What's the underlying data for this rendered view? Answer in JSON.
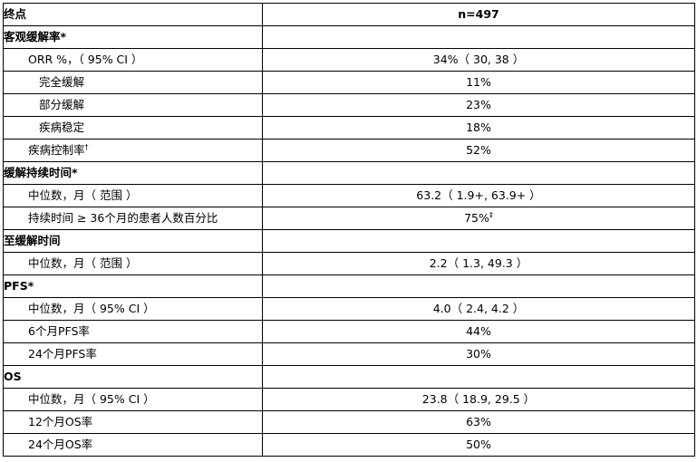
{
  "header": {
    "endpoint": "终点",
    "n": "n=497"
  },
  "sections": {
    "orr": {
      "title": "客观缓解率*",
      "orr_label": "ORR %，（ 95% CI ）",
      "orr_value": "34%（ 30, 38 ）",
      "cr_label": "完全缓解",
      "cr_value": "11%",
      "pr_label": "部分缓解",
      "pr_value": "23%",
      "sd_label": "疾病稳定",
      "sd_value": "18%",
      "dcr_label": "疾病控制率",
      "dcr_mark": "†",
      "dcr_value": "52%"
    },
    "dor": {
      "title": "缓解持续时间*",
      "median_label": "中位数，月（ 范围 ）",
      "median_value": "63.2（ 1.9+, 63.9+ ）",
      "pct_label": "持续时间 ≥ 36个月的患者人数百分比",
      "pct_value": "75%",
      "pct_mark": "‡"
    },
    "ttr": {
      "title": "至缓解时间",
      "median_label": "中位数，月（ 范围 ）",
      "median_value": "2.2（ 1.3, 49.3 ）"
    },
    "pfs": {
      "title": "PFS*",
      "median_label": "中位数，月（ 95% CI ）",
      "median_value": "4.0（ 2.4, 4.2 ）",
      "m6_label": "6个月PFS率",
      "m6_value": "44%",
      "m24_label": "24个月PFS率",
      "m24_value": "30%"
    },
    "os": {
      "title": "OS",
      "median_label": "中位数，月（ 95% CI ）",
      "median_value": "23.8（ 18.9, 29.5 ）",
      "m12_label": "12个月OS率",
      "m12_value": "63%",
      "m24_label": "24个月OS率",
      "m24_value": "50%"
    }
  }
}
